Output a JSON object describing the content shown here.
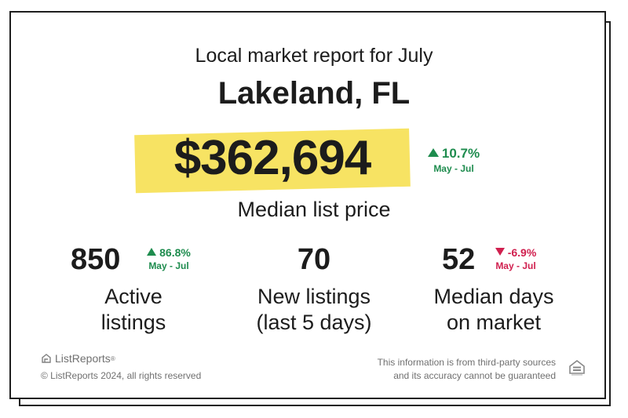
{
  "header": {
    "subtitle": "Local market report for July",
    "city": "Lakeland, FL"
  },
  "price": {
    "value": "$362,694",
    "label": "Median list price",
    "change": {
      "direction": "up",
      "percent": "10.7%",
      "period": "May - Jul"
    }
  },
  "stats": [
    {
      "value": "850",
      "label_line1": "Active",
      "label_line2": "listings",
      "change": {
        "direction": "up",
        "percent": "86.8%",
        "period": "May - Jul"
      }
    },
    {
      "value": "70",
      "label_line1": "New listings",
      "label_line2": "(last 5 days)"
    },
    {
      "value": "52",
      "label_line1": "Median days",
      "label_line2": "on market",
      "change": {
        "direction": "down",
        "percent": "-6.9%",
        "period": "May - Jul"
      }
    }
  ],
  "footer": {
    "brand": "ListReports",
    "brand_mark": "®",
    "copyright": "© ListReports 2024, all rights reserved",
    "disclaimer_line1": "This information is from third-party sources",
    "disclaimer_line2": "and its accuracy cannot be guaranteed",
    "equal_housing_icon": "equal-housing-opportunity-icon"
  },
  "colors": {
    "highlight": "#f7e363",
    "up": "#1e8c4e",
    "down": "#d0204f",
    "text": "#1c1c1c",
    "muted": "#707070"
  }
}
